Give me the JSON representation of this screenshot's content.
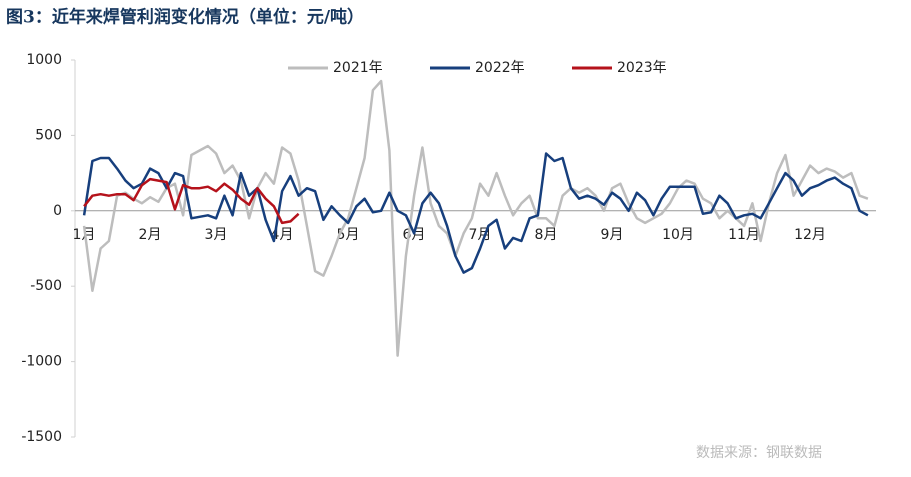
{
  "chart_data": {
    "type": "line",
    "title": "图3：近年来焊管利润变化情况（单位：元/吨）",
    "source": "数据来源：钢联数据",
    "categories": [
      "1月",
      null,
      null,
      null,
      null,
      null,
      null,
      null,
      "2月",
      null,
      null,
      null,
      null,
      null,
      null,
      null,
      "3月",
      null,
      null,
      null,
      null,
      null,
      null,
      null,
      "4月",
      null,
      null,
      null,
      null,
      null,
      null,
      null,
      "5月",
      null,
      null,
      null,
      null,
      null,
      null,
      null,
      "6月",
      null,
      null,
      null,
      null,
      null,
      null,
      null,
      "7月",
      null,
      null,
      null,
      null,
      null,
      null,
      null,
      "8月",
      null,
      null,
      null,
      null,
      null,
      null,
      null,
      "9月",
      null,
      null,
      null,
      null,
      null,
      null,
      null,
      "10月",
      null,
      null,
      null,
      null,
      null,
      null,
      null,
      "11月",
      null,
      null,
      null,
      null,
      null,
      null,
      null,
      "12月",
      null,
      null,
      null,
      null,
      null,
      null,
      null
    ],
    "ylim": [
      -1500,
      1000
    ],
    "yticks": [
      1000,
      500,
      0,
      -500,
      -1000,
      -1500
    ],
    "legend": "top",
    "series": [
      {
        "name": "2021年",
        "color": "#bdbdbd",
        "values": [
          -100,
          -530,
          -250,
          -200,
          100,
          120,
          80,
          50,
          90,
          60,
          150,
          180,
          -30,
          370,
          400,
          430,
          380,
          250,
          300,
          200,
          -50,
          150,
          250,
          180,
          420,
          380,
          200,
          -100,
          -400,
          -430,
          -300,
          -150,
          -50,
          150,
          350,
          800,
          860,
          400,
          -960,
          -300,
          100,
          420,
          50,
          -100,
          -150,
          -300,
          -150,
          -50,
          180,
          100,
          250,
          100,
          -30,
          50,
          100,
          -50,
          -50,
          -100,
          100,
          150,
          120,
          150,
          100,
          0,
          150,
          180,
          50,
          -50,
          -80,
          -50,
          -20,
          50,
          150,
          200,
          180,
          80,
          50,
          -50,
          0,
          -50,
          -100,
          50,
          -200,
          50,
          250,
          370,
          100,
          200,
          300,
          250,
          280,
          260,
          220,
          250,
          100,
          80
        ]
      },
      {
        "name": "2022年",
        "color": "#173f7d",
        "values": [
          -30,
          330,
          350,
          350,
          280,
          200,
          150,
          180,
          280,
          250,
          150,
          250,
          230,
          -50,
          -40,
          -30,
          -50,
          100,
          -30,
          250,
          100,
          150,
          -60,
          -200,
          130,
          230,
          100,
          150,
          130,
          -60,
          30,
          -30,
          -80,
          30,
          80,
          -10,
          0,
          120,
          0,
          -30,
          -150,
          50,
          120,
          50,
          -100,
          -300,
          -410,
          -380,
          -250,
          -100,
          -60,
          -250,
          -180,
          -200,
          -50,
          -30,
          380,
          330,
          350,
          150,
          80,
          100,
          80,
          40,
          120,
          80,
          0,
          120,
          70,
          -30,
          80,
          160,
          160,
          160,
          160,
          -20,
          -10,
          100,
          50,
          -50,
          -30,
          -20,
          -50,
          50,
          150,
          250,
          200,
          100,
          150,
          170,
          200,
          220,
          180,
          150,
          0,
          -30
        ]
      },
      {
        "name": "2023年",
        "color": "#b5121b",
        "values": [
          30,
          100,
          110,
          100,
          110,
          110,
          70,
          170,
          210,
          200,
          190,
          10,
          170,
          150,
          150,
          160,
          130,
          180,
          140,
          80,
          40,
          150,
          80,
          30,
          -80,
          -70,
          -20,
          null,
          null,
          null,
          null,
          null,
          null,
          null,
          null,
          null,
          null,
          null,
          null,
          null,
          null,
          null,
          null,
          null,
          null,
          null,
          null,
          null,
          null,
          null,
          null,
          null,
          null,
          null,
          null,
          null,
          null,
          null,
          null,
          null,
          null,
          null,
          null,
          null,
          null,
          null,
          null,
          null,
          null,
          null,
          null,
          null,
          null,
          null,
          null,
          null,
          null,
          null,
          null,
          null,
          null,
          null,
          null,
          null,
          null,
          null,
          null,
          null,
          null,
          null,
          null,
          null,
          null,
          null,
          null,
          null
        ]
      }
    ]
  }
}
